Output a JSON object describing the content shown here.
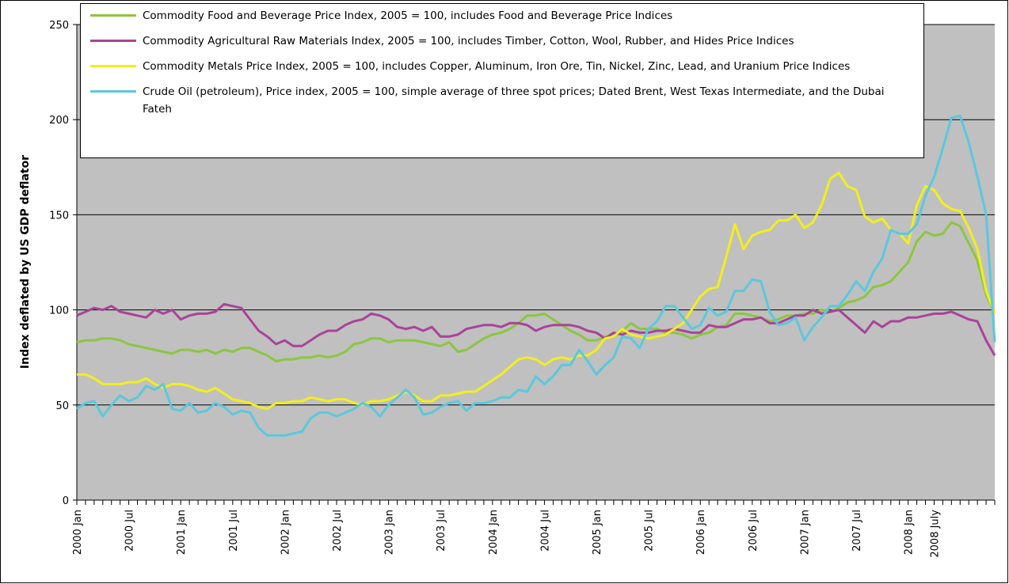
{
  "chart_data": {
    "type": "line",
    "y_label": "Index deflated by US GDP deflator",
    "categories": [
      "2000 Jan",
      null,
      null,
      null,
      null,
      null,
      "2000 Jul",
      null,
      null,
      null,
      null,
      null,
      "2001 Jan",
      null,
      null,
      null,
      null,
      null,
      "2001 Jul",
      null,
      null,
      null,
      null,
      null,
      "2002 Jan",
      null,
      null,
      null,
      null,
      null,
      "2002 Jul",
      null,
      null,
      null,
      null,
      null,
      "2003 Jan",
      null,
      null,
      null,
      null,
      null,
      "2003 Jul",
      null,
      null,
      null,
      null,
      null,
      "2004 Jan",
      null,
      null,
      null,
      null,
      null,
      "2004 Jul",
      null,
      null,
      null,
      null,
      null,
      "2005 Jan",
      null,
      null,
      null,
      null,
      null,
      "2005 Jul",
      null,
      null,
      null,
      null,
      null,
      "2006 Jan",
      null,
      null,
      null,
      null,
      null,
      "2006 Jul",
      null,
      null,
      null,
      null,
      null,
      "2007 Jan",
      null,
      null,
      null,
      null,
      null,
      "2007 Jul",
      null,
      null,
      null,
      null,
      null,
      "2008 Jan",
      null,
      null,
      "2008 July",
      null,
      null,
      null,
      null,
      null,
      null,
      null
    ],
    "series": [
      {
        "name": "Commodity Food and Beverage Price Index, 2005 = 100, includes Food and Beverage Price Indices",
        "color": "#8cc63f",
        "values": [
          83,
          84,
          84,
          85,
          85,
          84,
          82,
          81,
          80,
          79,
          78,
          77,
          79,
          79,
          78,
          79,
          77,
          79,
          78,
          80,
          80,
          78,
          76,
          73,
          74,
          74,
          75,
          75,
          76,
          75,
          76,
          78,
          82,
          83,
          85,
          85,
          83,
          84,
          84,
          84,
          83,
          82,
          81,
          83,
          78,
          79,
          82,
          85,
          87,
          88,
          90,
          93,
          97,
          97,
          98,
          95,
          92,
          89,
          87,
          84,
          84,
          86,
          86,
          89,
          93,
          90,
          90,
          90,
          88,
          88,
          87,
          85,
          87,
          88,
          91,
          92,
          98,
          98,
          97,
          96,
          94,
          95,
          97,
          97,
          98,
          98,
          100,
          99,
          101,
          104,
          105,
          107,
          112,
          113,
          115,
          120,
          125,
          136,
          141,
          139,
          140,
          146,
          144,
          135,
          126,
          108,
          98
        ]
      },
      {
        "name": "Commodity Agricultural Raw Materials Index, 2005 = 100, includes Timber, Cotton, Wool, Rubber, and Hides Price Indices",
        "color": "#a94399",
        "values": [
          97,
          99,
          101,
          100,
          102,
          99,
          98,
          97,
          96,
          100,
          98,
          100,
          95,
          97,
          98,
          98,
          99,
          103,
          102,
          101,
          95,
          89,
          86,
          82,
          84,
          81,
          81,
          84,
          87,
          89,
          89,
          92,
          94,
          95,
          98,
          97,
          95,
          91,
          90,
          91,
          89,
          91,
          86,
          86,
          87,
          90,
          91,
          92,
          92,
          91,
          93,
          93,
          92,
          89,
          91,
          92,
          92,
          92,
          91,
          89,
          88,
          85,
          88,
          87,
          89,
          88,
          88,
          89,
          89,
          90,
          89,
          88,
          88,
          92,
          91,
          91,
          93,
          95,
          95,
          96,
          93,
          93,
          95,
          97,
          97,
          100,
          98,
          99,
          100,
          96,
          92,
          88,
          94,
          91,
          94,
          94,
          96,
          96,
          97,
          98,
          98,
          99,
          97,
          95,
          94,
          84,
          76
        ]
      },
      {
        "name": "Commodity Metals Price Index, 2005 = 100, includes Copper, Aluminum, Iron Ore, Tin, Nickel, Zinc, Lead, and Uranium Price Indices",
        "color": "#f2ef1c",
        "values": [
          66,
          66,
          64,
          61,
          61,
          61,
          62,
          62,
          64,
          61,
          59,
          61,
          61,
          60,
          58,
          57,
          59,
          56,
          53,
          52,
          51,
          49,
          48,
          51,
          51,
          52,
          52,
          54,
          53,
          52,
          53,
          53,
          51,
          50,
          52,
          52,
          53,
          55,
          57,
          55,
          52,
          52,
          55,
          55,
          56,
          57,
          57,
          60,
          63,
          66,
          70,
          74,
          75,
          74,
          71,
          74,
          75,
          74,
          76,
          76,
          79,
          85,
          86,
          90,
          87,
          86,
          85,
          86,
          87,
          90,
          93,
          100,
          107,
          111,
          112,
          128,
          145,
          132,
          139,
          141,
          142,
          147,
          147,
          150,
          143,
          146,
          155,
          169,
          172,
          165,
          163,
          149,
          146,
          148,
          142,
          140,
          135,
          155,
          165,
          163,
          156,
          153,
          152,
          143,
          132,
          110,
          98
        ]
      },
      {
        "name": "Crude Oil (petroleum), Price index, 2005 = 100, simple average of three spot prices; Dated Brent, West Texas Intermediate, and the Dubai Fateh",
        "color": "#5bc8dc",
        "values": [
          48,
          51,
          52,
          44,
          50,
          55,
          52,
          54,
          60,
          58,
          61,
          48,
          47,
          51,
          46,
          47,
          51,
          49,
          45,
          47,
          46,
          38,
          34,
          34,
          34,
          35,
          36,
          43,
          46,
          46,
          44,
          46,
          48,
          51,
          49,
          44,
          50,
          54,
          58,
          54,
          45,
          46,
          49,
          51,
          52,
          47,
          51,
          51,
          52,
          54,
          54,
          58,
          57,
          65,
          61,
          65,
          71,
          71,
          79,
          73,
          66,
          71,
          75,
          86,
          85,
          80,
          90,
          94,
          102,
          102,
          96,
          90,
          92,
          101,
          97,
          99,
          110,
          110,
          116,
          115,
          99,
          92,
          93,
          96,
          84,
          91,
          96,
          102,
          102,
          108,
          115,
          110,
          120,
          127,
          142,
          140,
          140,
          145,
          160,
          170,
          185,
          201,
          202,
          188,
          170,
          150,
          83
        ]
      }
    ],
    "ylim": [
      0,
      250
    ],
    "yticks": [
      0,
      50,
      100,
      150,
      200,
      250
    ],
    "grid": true
  }
}
